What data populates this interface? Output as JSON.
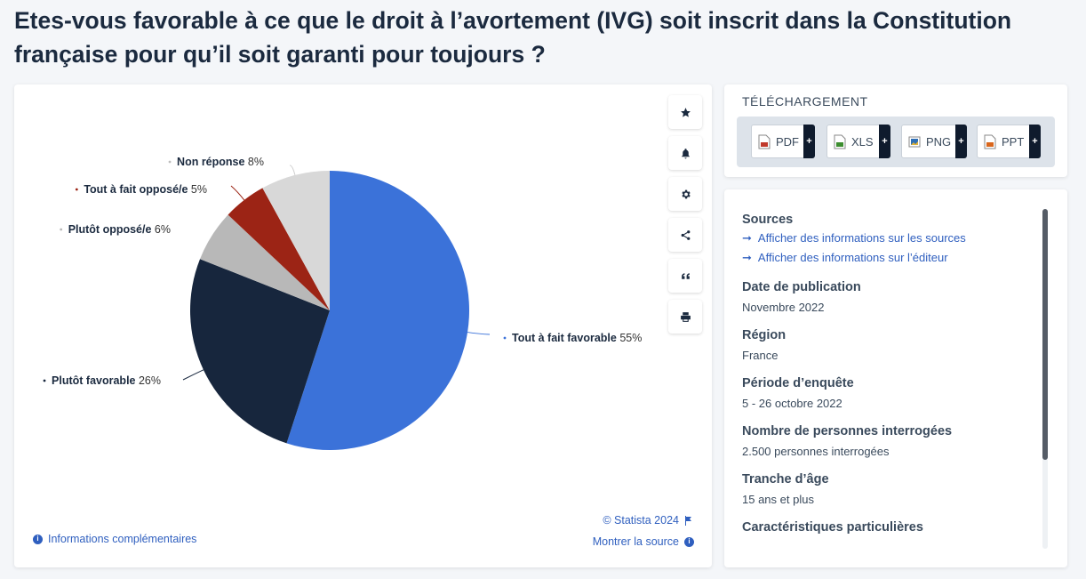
{
  "title": "Etes-vous favorable à ce que le droit à l’avortement (IVG) soit inscrit dans la Constitution française pour qu’il soit garanti pour toujours ?",
  "chart_data": {
    "type": "pie",
    "slices": [
      {
        "label": "Tout à fait favorable",
        "value": 55,
        "display": "55%",
        "color": "#3b72d9"
      },
      {
        "label": "Plutôt favorable",
        "value": 26,
        "display": "26%",
        "color": "#17263d"
      },
      {
        "label": "Plutôt opposé/e",
        "value": 6,
        "display": "6%",
        "color": "#b8b8b8"
      },
      {
        "label": "Tout à fait opposé/e",
        "value": 5,
        "display": "5%",
        "color": "#9c2415"
      },
      {
        "label": "Non réponse",
        "value": 8,
        "display": "8%",
        "color": "#d8d8d8"
      }
    ]
  },
  "toolbar": {
    "buttons": [
      {
        "name": "star-icon"
      },
      {
        "name": "bell-icon"
      },
      {
        "name": "gear-icon"
      },
      {
        "name": "share-icon"
      },
      {
        "name": "quote-icon"
      },
      {
        "name": "print-icon"
      }
    ]
  },
  "footer": {
    "copyright": "© Statista 2024",
    "show_source": "Montrer la source",
    "more_info": "Informations complémentaires"
  },
  "download": {
    "title": "TÉLÉCHARGEMENT",
    "formats": [
      {
        "label": "PDF",
        "color": "#c0392b"
      },
      {
        "label": "XLS",
        "color": "#3c8d2f"
      },
      {
        "label": "PNG",
        "color": "#2f6fb5"
      },
      {
        "label": "PPT",
        "color": "#d9661c"
      }
    ]
  },
  "info": {
    "sources_title": "Sources",
    "source_link_1": "Afficher des informations sur les sources",
    "source_link_2": "Afficher des informations sur l’éditeur",
    "pub_title": "Date de publication",
    "pub_value": "Novembre 2022",
    "region_title": "Région",
    "region_value": "France",
    "period_title": "Période d’enquête",
    "period_value": "5 - 26 octobre 2022",
    "respondents_title": "Nombre de personnes interrogées",
    "respondents_value": "2.500 personnes interrogées",
    "age_title": "Tranche d’âge",
    "age_value": "15 ans et plus",
    "special_title": "Caractéristiques particulières"
  }
}
